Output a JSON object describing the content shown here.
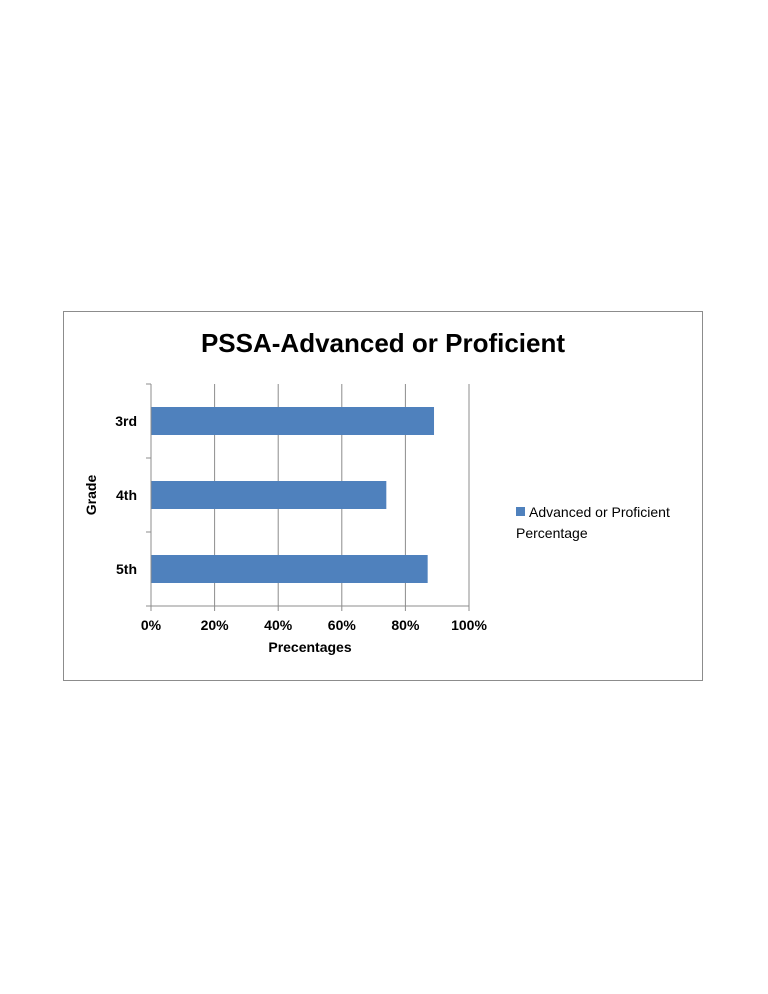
{
  "chart_data": {
    "type": "bar",
    "orientation": "horizontal",
    "title": "PSSA-Advanced or Proficient",
    "xlabel": "Precentages",
    "ylabel": "Grade",
    "categories": [
      "3rd",
      "4th",
      "5th"
    ],
    "series": [
      {
        "name": "Advanced or Proficient Percentage",
        "values": [
          89,
          74,
          87
        ],
        "color": "#4f81bd"
      }
    ],
    "xlim": [
      0,
      100
    ],
    "xticks": [
      "0%",
      "20%",
      "40%",
      "60%",
      "80%",
      "100%"
    ],
    "grid": true,
    "legend_position": "right"
  }
}
